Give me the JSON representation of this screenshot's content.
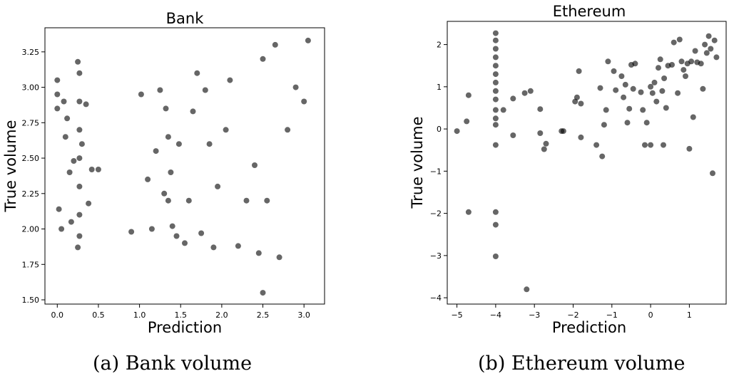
{
  "chart_data": [
    {
      "type": "scatter",
      "title": "Bank",
      "xlabel": "Prediction",
      "ylabel": "True volume",
      "xlim": [
        -0.15,
        3.25
      ],
      "ylim": [
        1.47,
        3.42
      ],
      "xticks": [
        "0.0",
        "0.5",
        "1.0",
        "1.5",
        "2.0",
        "2.5",
        "3.0"
      ],
      "yticks": [
        "1.50",
        "1.75",
        "2.00",
        "2.25",
        "2.50",
        "2.75",
        "3.00",
        "3.25"
      ],
      "grid": false,
      "marker_color": "#000000",
      "marker_alpha": 0.6,
      "points_approx": [
        [
          0.0,
          3.05
        ],
        [
          0.0,
          2.95
        ],
        [
          0.0,
          2.85
        ],
        [
          0.02,
          2.14
        ],
        [
          0.05,
          2.0
        ],
        [
          0.08,
          2.9
        ],
        [
          0.1,
          2.65
        ],
        [
          0.12,
          2.78
        ],
        [
          0.15,
          2.4
        ],
        [
          0.17,
          2.05
        ],
        [
          0.2,
          2.48
        ],
        [
          0.25,
          3.18
        ],
        [
          0.27,
          3.1
        ],
        [
          0.27,
          2.9
        ],
        [
          0.27,
          2.7
        ],
        [
          0.27,
          2.5
        ],
        [
          0.27,
          2.3
        ],
        [
          0.27,
          2.1
        ],
        [
          0.27,
          1.95
        ],
        [
          0.25,
          1.87
        ],
        [
          0.3,
          2.6
        ],
        [
          0.35,
          2.88
        ],
        [
          0.38,
          2.18
        ],
        [
          0.42,
          2.42
        ],
        [
          0.5,
          2.42
        ],
        [
          0.9,
          1.98
        ],
        [
          1.02,
          2.95
        ],
        [
          1.1,
          2.35
        ],
        [
          1.15,
          2.0
        ],
        [
          1.2,
          2.55
        ],
        [
          1.25,
          2.98
        ],
        [
          1.3,
          2.25
        ],
        [
          1.32,
          2.85
        ],
        [
          1.35,
          2.2
        ],
        [
          1.35,
          2.65
        ],
        [
          1.38,
          2.4
        ],
        [
          1.4,
          2.02
        ],
        [
          1.45,
          1.95
        ],
        [
          1.48,
          2.6
        ],
        [
          1.55,
          1.9
        ],
        [
          1.6,
          2.2
        ],
        [
          1.65,
          2.83
        ],
        [
          1.7,
          3.1
        ],
        [
          1.75,
          1.97
        ],
        [
          1.8,
          2.98
        ],
        [
          1.85,
          2.6
        ],
        [
          1.9,
          1.87
        ],
        [
          1.95,
          2.3
        ],
        [
          2.05,
          2.7
        ],
        [
          2.1,
          3.05
        ],
        [
          2.2,
          1.88
        ],
        [
          2.3,
          2.2
        ],
        [
          2.4,
          2.45
        ],
        [
          2.45,
          1.83
        ],
        [
          2.5,
          1.55
        ],
        [
          2.5,
          3.2
        ],
        [
          2.55,
          2.2
        ],
        [
          2.65,
          3.3
        ],
        [
          2.7,
          1.8
        ],
        [
          2.8,
          2.7
        ],
        [
          2.9,
          3.0
        ],
        [
          3.0,
          2.9
        ],
        [
          3.05,
          3.33
        ]
      ]
    },
    {
      "type": "scatter",
      "title": "Ethereum",
      "xlabel": "Prediction",
      "ylabel": "True volume",
      "xlim": [
        -5.25,
        1.95
      ],
      "ylim": [
        -4.15,
        2.55
      ],
      "xticks": [
        "−5",
        "−4",
        "−3",
        "−2",
        "−1",
        "0",
        "1"
      ],
      "yticks": [
        "−4",
        "−3",
        "−2",
        "−1",
        "0",
        "1",
        "2"
      ],
      "grid": false,
      "marker_color": "#000000",
      "marker_alpha": 0.6,
      "points_approx": [
        [
          -5.0,
          -0.05
        ],
        [
          -4.75,
          0.18
        ],
        [
          -4.7,
          0.8
        ],
        [
          -4.7,
          -1.97
        ],
        [
          -4.0,
          2.27
        ],
        [
          -4.0,
          2.1
        ],
        [
          -4.0,
          1.9
        ],
        [
          -4.0,
          1.7
        ],
        [
          -4.0,
          1.5
        ],
        [
          -4.0,
          1.3
        ],
        [
          -4.0,
          1.1
        ],
        [
          -4.0,
          0.9
        ],
        [
          -4.0,
          0.7
        ],
        [
          -4.0,
          0.45
        ],
        [
          -4.0,
          0.25
        ],
        [
          -4.0,
          0.1
        ],
        [
          -4.0,
          -0.38
        ],
        [
          -4.0,
          -1.97
        ],
        [
          -4.0,
          -2.27
        ],
        [
          -4.0,
          -3.02
        ],
        [
          -3.8,
          0.45
        ],
        [
          -3.55,
          0.72
        ],
        [
          -3.55,
          -0.15
        ],
        [
          -3.25,
          0.85
        ],
        [
          -3.2,
          -3.8
        ],
        [
          -3.1,
          0.9
        ],
        [
          -2.85,
          0.47
        ],
        [
          -2.85,
          -0.1
        ],
        [
          -2.75,
          -0.48
        ],
        [
          -2.7,
          -0.35
        ],
        [
          -2.3,
          -0.05
        ],
        [
          -2.25,
          -0.05
        ],
        [
          -1.95,
          0.65
        ],
        [
          -1.9,
          0.75
        ],
        [
          -1.85,
          1.37
        ],
        [
          -1.8,
          -0.2
        ],
        [
          -1.8,
          0.6
        ],
        [
          -1.4,
          -0.38
        ],
        [
          -1.3,
          0.97
        ],
        [
          -1.25,
          -0.65
        ],
        [
          -1.2,
          0.1
        ],
        [
          -1.15,
          0.45
        ],
        [
          -1.1,
          1.6
        ],
        [
          -0.9,
          0.92
        ],
        [
          -0.95,
          1.37
        ],
        [
          -0.75,
          1.25
        ],
        [
          -0.7,
          0.75
        ],
        [
          -0.65,
          1.05
        ],
        [
          -0.6,
          0.15
        ],
        [
          -0.55,
          0.48
        ],
        [
          -0.5,
          1.52
        ],
        [
          -0.45,
          0.95
        ],
        [
          -0.4,
          1.55
        ],
        [
          -0.25,
          0.87
        ],
        [
          -0.2,
          0.45
        ],
        [
          -0.15,
          -0.38
        ],
        [
          -0.1,
          0.15
        ],
        [
          0.0,
          -0.38
        ],
        [
          0.0,
          1.0
        ],
        [
          0.05,
          0.85
        ],
        [
          0.1,
          1.1
        ],
        [
          0.15,
          0.65
        ],
        [
          0.2,
          1.45
        ],
        [
          0.25,
          1.65
        ],
        [
          0.3,
          0.9
        ],
        [
          0.33,
          -0.38
        ],
        [
          0.35,
          1.2
        ],
        [
          0.4,
          0.5
        ],
        [
          0.45,
          1.5
        ],
        [
          0.55,
          1.52
        ],
        [
          0.6,
          2.05
        ],
        [
          0.7,
          0.85
        ],
        [
          0.75,
          2.12
        ],
        [
          0.8,
          1.6
        ],
        [
          0.85,
          1.4
        ],
        [
          0.9,
          1.25
        ],
        [
          0.95,
          1.55
        ],
        [
          1.0,
          -0.47
        ],
        [
          1.05,
          1.6
        ],
        [
          1.1,
          0.28
        ],
        [
          1.15,
          1.85
        ],
        [
          1.2,
          1.58
        ],
        [
          1.3,
          1.55
        ],
        [
          1.35,
          0.95
        ],
        [
          1.4,
          2.0
        ],
        [
          1.45,
          1.8
        ],
        [
          1.5,
          2.2
        ],
        [
          1.55,
          1.9
        ],
        [
          1.6,
          -1.05
        ],
        [
          1.65,
          2.1
        ],
        [
          1.7,
          1.7
        ]
      ]
    }
  ],
  "captions": [
    "(a) Bank volume",
    "(b) Ethereum volume"
  ]
}
